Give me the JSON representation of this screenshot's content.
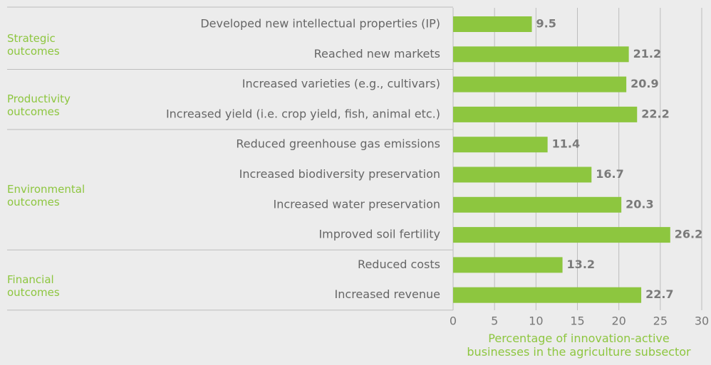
{
  "chart_data": {
    "type": "hbar-grouped",
    "groups": [
      {
        "name": "Strategic outcomes",
        "categories": [
          "Developed new intellectual properties (IP)",
          "Reached new markets"
        ],
        "values": [
          9.5,
          21.2
        ]
      },
      {
        "name": "Productivity outcomes",
        "categories": [
          "Increased varieties (e.g., cultivars)",
          "Increased yield (i.e. crop yield, fish, animal etc.)"
        ],
        "values": [
          20.9,
          22.2
        ]
      },
      {
        "name": "Environmental outcomes",
        "categories": [
          "Reduced greenhouse gas emissions",
          "Increased biodiversity preservation",
          "Increased water preservation",
          "Improved soil fertility"
        ],
        "values": [
          11.4,
          16.7,
          20.3,
          26.2
        ]
      },
      {
        "name": "Financial outcomes",
        "categories": [
          "Reduced costs",
          "Increased revenue"
        ],
        "values": [
          13.2,
          22.7
        ]
      }
    ],
    "color": "#8dc63f",
    "xlabel": "Percentage of innovation-active businesses in the agriculture subsector",
    "xlim": [
      0,
      30
    ],
    "xticks": [
      0,
      5,
      10,
      15,
      20,
      25,
      30
    ],
    "grid": true
  }
}
